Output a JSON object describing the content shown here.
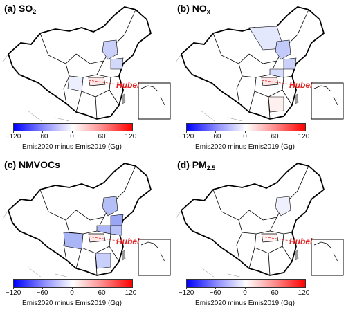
{
  "panels": [
    {
      "letter": "(a)",
      "species": "SO",
      "subscript": "2",
      "highlight": "Hubei"
    },
    {
      "letter": "(b)",
      "species": "NO",
      "subscript": "x",
      "highlight": "Hubei"
    },
    {
      "letter": "(c)",
      "species": "NMVOCs",
      "subscript": "",
      "highlight": "Hubei"
    },
    {
      "letter": "(d)",
      "species": "PM",
      "subscript": "2.5",
      "highlight": "Hubei"
    }
  ],
  "colorbar": {
    "ticks": [
      "−120",
      "−60",
      "0",
      "60",
      "120"
    ],
    "label": "Emis2020 minus Emis2019 (Gg)",
    "min_color": "#0000ff",
    "mid_color": "#ffffff",
    "max_color": "#ff0000"
  },
  "colors": {
    "provinces_light_blue": "#dde3ff",
    "provinces_medium_blue": "#b3bdf5",
    "hubei_pink": "#ffe2e2",
    "taiwan_gray": "#9a9a9a",
    "hubei_label": "#e32424"
  }
}
